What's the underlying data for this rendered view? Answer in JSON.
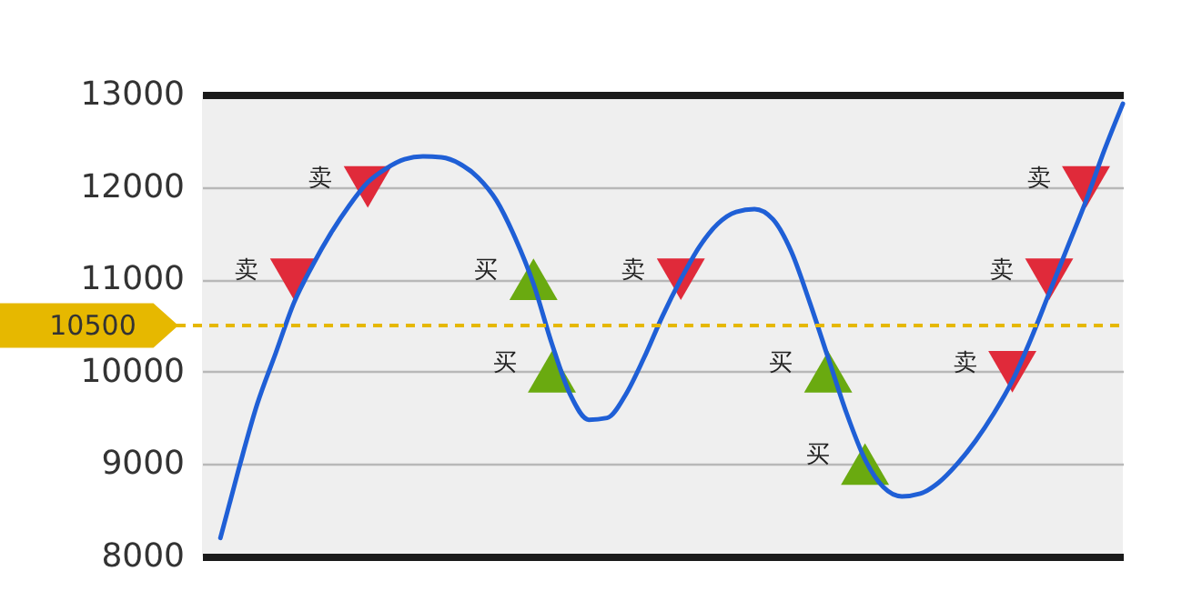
{
  "chart_data": {
    "type": "line",
    "categories": [
      null,
      null,
      null,
      null,
      null,
      null,
      null,
      null,
      null,
      null,
      null,
      null,
      null,
      null,
      null,
      null,
      null,
      null,
      null,
      null,
      null,
      null,
      null,
      null,
      null,
      null,
      null,
      null,
      null,
      null,
      null,
      null,
      null,
      null,
      null,
      null,
      null,
      null,
      null,
      null,
      null,
      null,
      null,
      null,
      null,
      null,
      null,
      null,
      null,
      null,
      null
    ],
    "series": [
      {
        "color": "#1f5fd6",
        "values": [
          null,
          8200,
          8950,
          9650,
          10200,
          10750,
          11150,
          11500,
          11800,
          12050,
          12200,
          12300,
          12330,
          12320,
          12250,
          12100,
          11850,
          11450,
          10950,
          10300,
          9750,
          9480,
          9500,
          9750,
          10150,
          10600,
          11000,
          11350,
          11600,
          11730,
          11760,
          11650,
          11300,
          10750,
          10150,
          9550,
          9050,
          8750,
          8650,
          8680,
          8800,
          9000,
          9250,
          9550,
          9900,
          10350,
          10850,
          11350,
          11850,
          12400,
          12900
        ]
      },
      {
        "type": "scatter",
        "name": "卖",
        "color": "#e02a3a",
        "marker": "triangle-down",
        "values": [
          null,
          null,
          null,
          null,
          null,
          11000,
          null,
          null,
          null,
          12000,
          null,
          null,
          null,
          null,
          null,
          null,
          null,
          null,
          null,
          null,
          null,
          null,
          null,
          null,
          null,
          null,
          11000,
          null,
          null,
          null,
          null,
          null,
          null,
          null,
          null,
          null,
          null,
          null,
          null,
          null,
          null,
          null,
          null,
          null,
          10000,
          null,
          11000,
          null,
          12000,
          null,
          null
        ]
      },
      {
        "type": "scatter",
        "name": "买",
        "color": "#6aaa10",
        "marker": "triangle",
        "values": [
          null,
          null,
          null,
          null,
          null,
          null,
          null,
          null,
          null,
          null,
          null,
          null,
          null,
          null,
          null,
          null,
          null,
          null,
          11000,
          10000,
          null,
          null,
          null,
          null,
          null,
          null,
          null,
          null,
          null,
          null,
          null,
          null,
          null,
          null,
          10000,
          null,
          9000,
          null,
          null,
          null,
          null,
          null,
          null,
          null,
          null,
          null,
          null,
          null,
          null,
          null,
          null
        ]
      }
    ],
    "ylim": [
      8000,
      13000
    ],
    "yticks": [
      8000,
      9000,
      10000,
      11000,
      12000,
      13000
    ],
    "grid": "y",
    "tick_labels": "y",
    "ref_lines": [
      {
        "axis": "y",
        "value": 10500,
        "label": "10500",
        "color": "#e6b800",
        "line_style": "dashed"
      }
    ]
  }
}
